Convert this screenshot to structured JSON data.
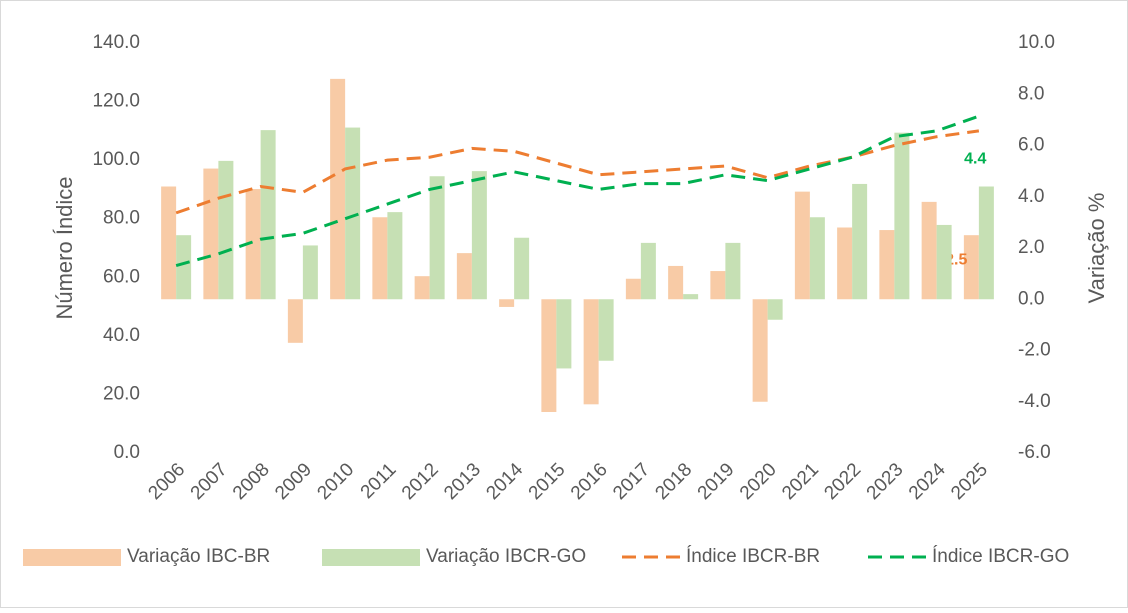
{
  "chart_data": {
    "type": "bar-line",
    "ylabel": "Número Índice",
    "y2label": "Variação %",
    "categories": [
      "2006",
      "2007",
      "2008",
      "2009",
      "2010",
      "2011",
      "2012",
      "2013",
      "2014",
      "2015",
      "2016",
      "2017",
      "2018",
      "2019",
      "2020",
      "2021",
      "2022",
      "2023",
      "2024",
      "2025"
    ],
    "series": [
      {
        "name": "Variação IBC-BR",
        "type": "bar",
        "axis": "y2",
        "color": "#f8cba6",
        "label_color": "#ed7d31",
        "values": [
          4.4,
          5.1,
          4.3,
          -1.7,
          8.6,
          3.2,
          0.9,
          1.8,
          -0.3,
          -4.4,
          -4.1,
          0.8,
          1.3,
          1.1,
          -4.0,
          4.2,
          2.8,
          2.7,
          3.8,
          2.5
        ],
        "value_labels": [
          null,
          null,
          null,
          null,
          null,
          null,
          null,
          null,
          null,
          null,
          null,
          null,
          null,
          null,
          null,
          null,
          null,
          null,
          null,
          "2.5"
        ]
      },
      {
        "name": "Variação IBCR-GO",
        "type": "bar",
        "axis": "y2",
        "color": "#c6e0b4",
        "label_color": "#00b050",
        "values": [
          2.5,
          5.4,
          6.6,
          2.1,
          6.7,
          3.4,
          4.8,
          5.0,
          2.4,
          -2.7,
          -2.4,
          2.2,
          0.2,
          2.2,
          -0.8,
          3.2,
          4.5,
          6.5,
          2.9,
          4.4
        ],
        "value_labels": [
          null,
          null,
          null,
          null,
          null,
          null,
          null,
          null,
          null,
          null,
          null,
          null,
          null,
          null,
          null,
          null,
          null,
          null,
          null,
          "4.4"
        ]
      },
      {
        "name": "Índice IBCR-BR",
        "type": "line",
        "color": "#ed7d31",
        "values": [
          82,
          87,
          91,
          89,
          97,
          100,
          101,
          104,
          103,
          99,
          95,
          96,
          97,
          98,
          94,
          98,
          101,
          105,
          108,
          110
        ]
      },
      {
        "name": "Índice IBCR-GO",
        "type": "line",
        "color": "#00b050",
        "values": [
          64,
          68,
          73,
          75,
          80,
          85,
          90,
          93,
          96,
          93,
          90,
          92,
          92,
          95,
          93,
          97,
          101,
          108,
          110,
          115
        ]
      }
    ],
    "ylim": [
      0,
      140
    ],
    "yticks": [
      {
        "value": 0,
        "label": "0.0"
      },
      {
        "value": 20,
        "label": "20.0"
      },
      {
        "value": 40,
        "label": "40.0"
      },
      {
        "value": 60,
        "label": "60.0"
      },
      {
        "value": 80,
        "label": "80.0"
      },
      {
        "value": 100,
        "label": "100.0"
      },
      {
        "value": 120,
        "label": "120.0"
      },
      {
        "value": 140,
        "label": "140.0"
      }
    ],
    "y2lim": [
      -6,
      10
    ],
    "y2ticks": [
      {
        "value": -6,
        "label": "-6.0"
      },
      {
        "value": -4,
        "label": "-4.0"
      },
      {
        "value": -2,
        "label": "-2.0"
      },
      {
        "value": 0,
        "label": "0.0"
      },
      {
        "value": 2,
        "label": "2.0"
      },
      {
        "value": 4,
        "label": "4.0"
      },
      {
        "value": 6,
        "label": "6.0"
      },
      {
        "value": 8,
        "label": "8.0"
      },
      {
        "value": 10,
        "label": "10.0"
      }
    ],
    "grid": false,
    "legend": "bottom"
  }
}
